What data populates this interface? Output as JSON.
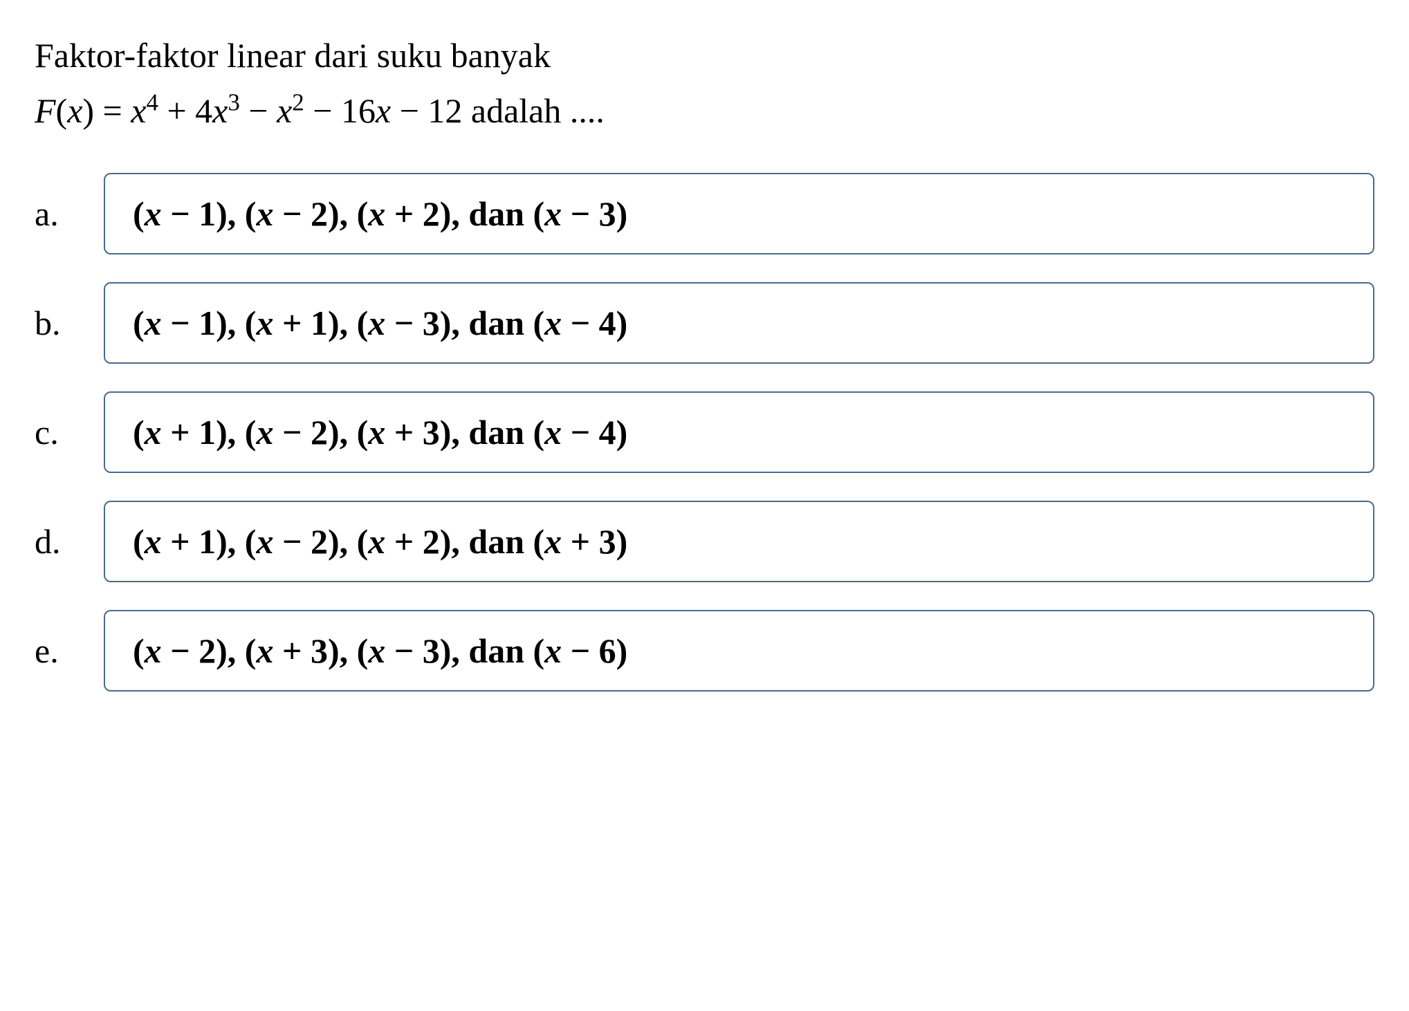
{
  "question": {
    "line1": "Faktor-faktor linear dari suku banyak",
    "line2_prefix": "F",
    "line2_x": "x",
    "line2_eq": " = ",
    "line2_poly": "x⁴ + 4x³ − x² − 16x − 12 adalah ...."
  },
  "options": [
    {
      "letter": "a.",
      "content": "(x − 1), (x − 2), (x + 2), dan (x − 3)"
    },
    {
      "letter": "b.",
      "content": "(x − 1), (x + 1), (x − 3), dan (x − 4)"
    },
    {
      "letter": "c.",
      "content": "(x + 1), (x − 2), (x + 3), dan (x − 4)"
    },
    {
      "letter": "d.",
      "content": "(x + 1), (x − 2), (x + 2), dan (x + 3)"
    },
    {
      "letter": "e.",
      "content": "(x − 2), (x + 3), (x − 3), dan (x − 6)"
    }
  ],
  "styling": {
    "background_color": "#ffffff",
    "text_color": "#000000",
    "border_color": "#4a6b8a",
    "question_fontsize": 50,
    "option_fontsize": 50,
    "border_radius": 10,
    "border_width": 2,
    "option_gap": 40,
    "font_family": "Times New Roman"
  }
}
